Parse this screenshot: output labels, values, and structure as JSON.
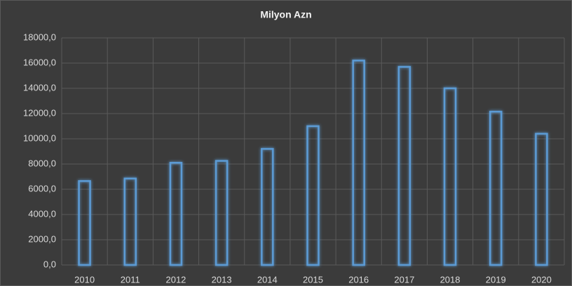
{
  "chart_data": {
    "type": "bar",
    "title": "Milyon Azn",
    "categories": [
      "2010",
      "2011",
      "2012",
      "2013",
      "2014",
      "2015",
      "2016",
      "2017",
      "2018",
      "2019",
      "2020"
    ],
    "values": [
      6650,
      6850,
      8100,
      8250,
      9200,
      11000,
      16200,
      15700,
      14000,
      12150,
      10400
    ],
    "color": "#5b9bd5",
    "ylim": [
      0,
      18000
    ],
    "yticks": [
      {
        "value": 0,
        "label": "0,0"
      },
      {
        "value": 2000,
        "label": "2000,0"
      },
      {
        "value": 4000,
        "label": "4000,0"
      },
      {
        "value": 6000,
        "label": "6000,0"
      },
      {
        "value": 8000,
        "label": "8000,0"
      },
      {
        "value": 10000,
        "label": "10000,0"
      },
      {
        "value": 12000,
        "label": "12000,0"
      },
      {
        "value": 14000,
        "label": "14000,0"
      },
      {
        "value": 16000,
        "label": "16000,0"
      },
      {
        "value": 18000,
        "label": "18000,0"
      }
    ],
    "grid": true
  }
}
